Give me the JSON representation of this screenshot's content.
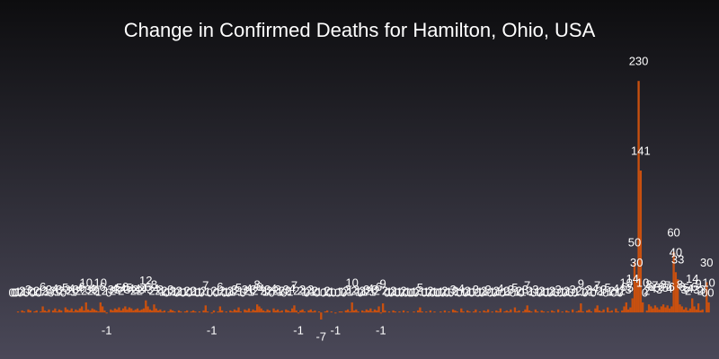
{
  "chart_data": {
    "type": "bar",
    "title": "Change in Confirmed Deaths for Hamilton, Ohio, USA",
    "color": "#c9500f",
    "ylim": [
      -40,
      240
    ],
    "values": [
      0,
      0,
      0,
      1,
      0,
      2,
      1,
      0,
      3,
      2,
      0,
      1,
      2,
      0,
      1,
      6,
      2,
      1,
      3,
      0,
      2,
      4,
      1,
      3,
      2,
      0,
      5,
      3,
      2,
      4,
      1,
      3,
      2,
      4,
      6,
      2,
      10,
      3,
      2,
      4,
      3,
      2,
      1,
      10,
      6,
      2,
      -1,
      0,
      3,
      2,
      4,
      3,
      5,
      2,
      4,
      6,
      3,
      5,
      4,
      2,
      3,
      4,
      2,
      3,
      4,
      12,
      6,
      3,
      2,
      8,
      4,
      2,
      3,
      1,
      2,
      0,
      1,
      3,
      2,
      1,
      0,
      2,
      1,
      0,
      1,
      2,
      0,
      1,
      2,
      1,
      0,
      1,
      0,
      2,
      7,
      1,
      0,
      -1,
      2,
      0,
      1,
      6,
      2,
      0,
      1,
      0,
      2,
      1,
      3,
      2,
      5,
      1,
      0,
      3,
      2,
      4,
      1,
      3,
      2,
      8,
      6,
      4,
      2,
      1,
      3,
      2,
      0,
      4,
      2,
      3,
      1,
      2,
      0,
      3,
      2,
      1,
      4,
      7,
      2,
      -1,
      2,
      3,
      1,
      0,
      2,
      3,
      1,
      2,
      0,
      1,
      -7,
      0,
      1,
      2,
      0,
      1,
      0,
      -1,
      0,
      1,
      1,
      0,
      2,
      3,
      1,
      10,
      2,
      3,
      1,
      0,
      2,
      1,
      3,
      2,
      4,
      1,
      3,
      2,
      6,
      -1,
      9,
      2,
      0,
      1,
      0,
      2,
      1,
      0,
      1,
      0,
      2,
      0,
      1,
      0,
      0,
      1,
      0,
      2,
      5,
      1,
      0,
      1,
      0,
      2,
      0,
      1,
      0,
      0,
      1,
      0,
      2,
      0,
      1,
      0,
      3,
      2,
      1,
      0,
      4,
      1,
      0,
      2,
      1,
      0,
      1,
      3,
      0,
      1,
      0,
      2,
      1,
      3,
      0,
      1,
      0,
      2,
      1,
      4,
      0,
      1,
      2,
      1,
      3,
      0,
      5,
      1,
      2,
      0,
      1,
      3,
      7,
      2,
      1,
      0,
      3,
      1,
      0,
      2,
      1,
      0,
      1,
      0,
      2,
      1,
      0,
      3,
      0,
      1,
      0,
      2,
      1,
      0,
      3,
      0,
      1,
      2,
      9,
      1,
      0,
      2,
      3,
      1,
      0,
      4,
      7,
      2,
      1,
      3,
      0,
      5,
      1,
      2,
      0,
      4,
      1,
      0,
      2,
      6,
      10,
      3,
      5,
      14,
      50,
      30,
      230,
      141,
      10,
      0,
      2,
      8,
      6,
      4,
      7,
      5,
      3,
      6,
      8,
      5,
      7,
      4,
      6,
      60,
      40,
      33,
      8,
      6,
      3,
      5,
      2,
      4,
      14,
      6,
      3,
      9,
      2,
      3,
      0,
      30,
      10,
      0
    ]
  }
}
